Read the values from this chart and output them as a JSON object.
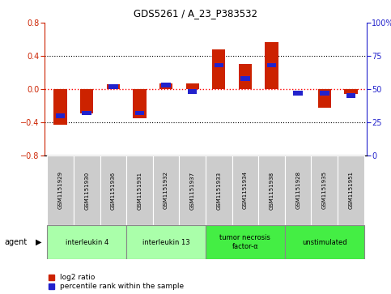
{
  "title": "GDS5261 / A_23_P383532",
  "samples": [
    "GSM1151929",
    "GSM1151930",
    "GSM1151936",
    "GSM1151931",
    "GSM1151932",
    "GSM1151937",
    "GSM1151933",
    "GSM1151934",
    "GSM1151938",
    "GSM1151928",
    "GSM1151935",
    "GSM1151951"
  ],
  "log2_ratio": [
    -0.43,
    -0.29,
    0.06,
    -0.35,
    0.07,
    0.07,
    0.48,
    0.3,
    0.57,
    0.0,
    -0.22,
    -0.06
  ],
  "percentile_rank": [
    30,
    32,
    52,
    32,
    53,
    48,
    68,
    58,
    68,
    47,
    47,
    45
  ],
  "agents": [
    {
      "label": "interleukin 4",
      "start": 0,
      "end": 3,
      "color": "#aaffaa"
    },
    {
      "label": "interleukin 13",
      "start": 3,
      "end": 6,
      "color": "#aaffaa"
    },
    {
      "label": "tumor necrosis\nfactor-α",
      "start": 6,
      "end": 9,
      "color": "#44ee44"
    },
    {
      "label": "unstimulated",
      "start": 9,
      "end": 12,
      "color": "#44ee44"
    }
  ],
  "ylim_left": [
    -0.8,
    0.8
  ],
  "ylim_right": [
    0,
    100
  ],
  "yticks_left": [
    -0.8,
    -0.4,
    0.0,
    0.4,
    0.8
  ],
  "yticks_right": [
    0,
    25,
    50,
    75,
    100
  ],
  "ytick_labels_right": [
    "0",
    "25",
    "50",
    "75",
    "100%"
  ],
  "red_color": "#cc2200",
  "blue_color": "#2222cc",
  "bg_color": "#ffffff",
  "legend_items": [
    {
      "color": "#cc2200",
      "label": "log2 ratio"
    },
    {
      "color": "#2222cc",
      "label": "percentile rank within the sample"
    }
  ]
}
